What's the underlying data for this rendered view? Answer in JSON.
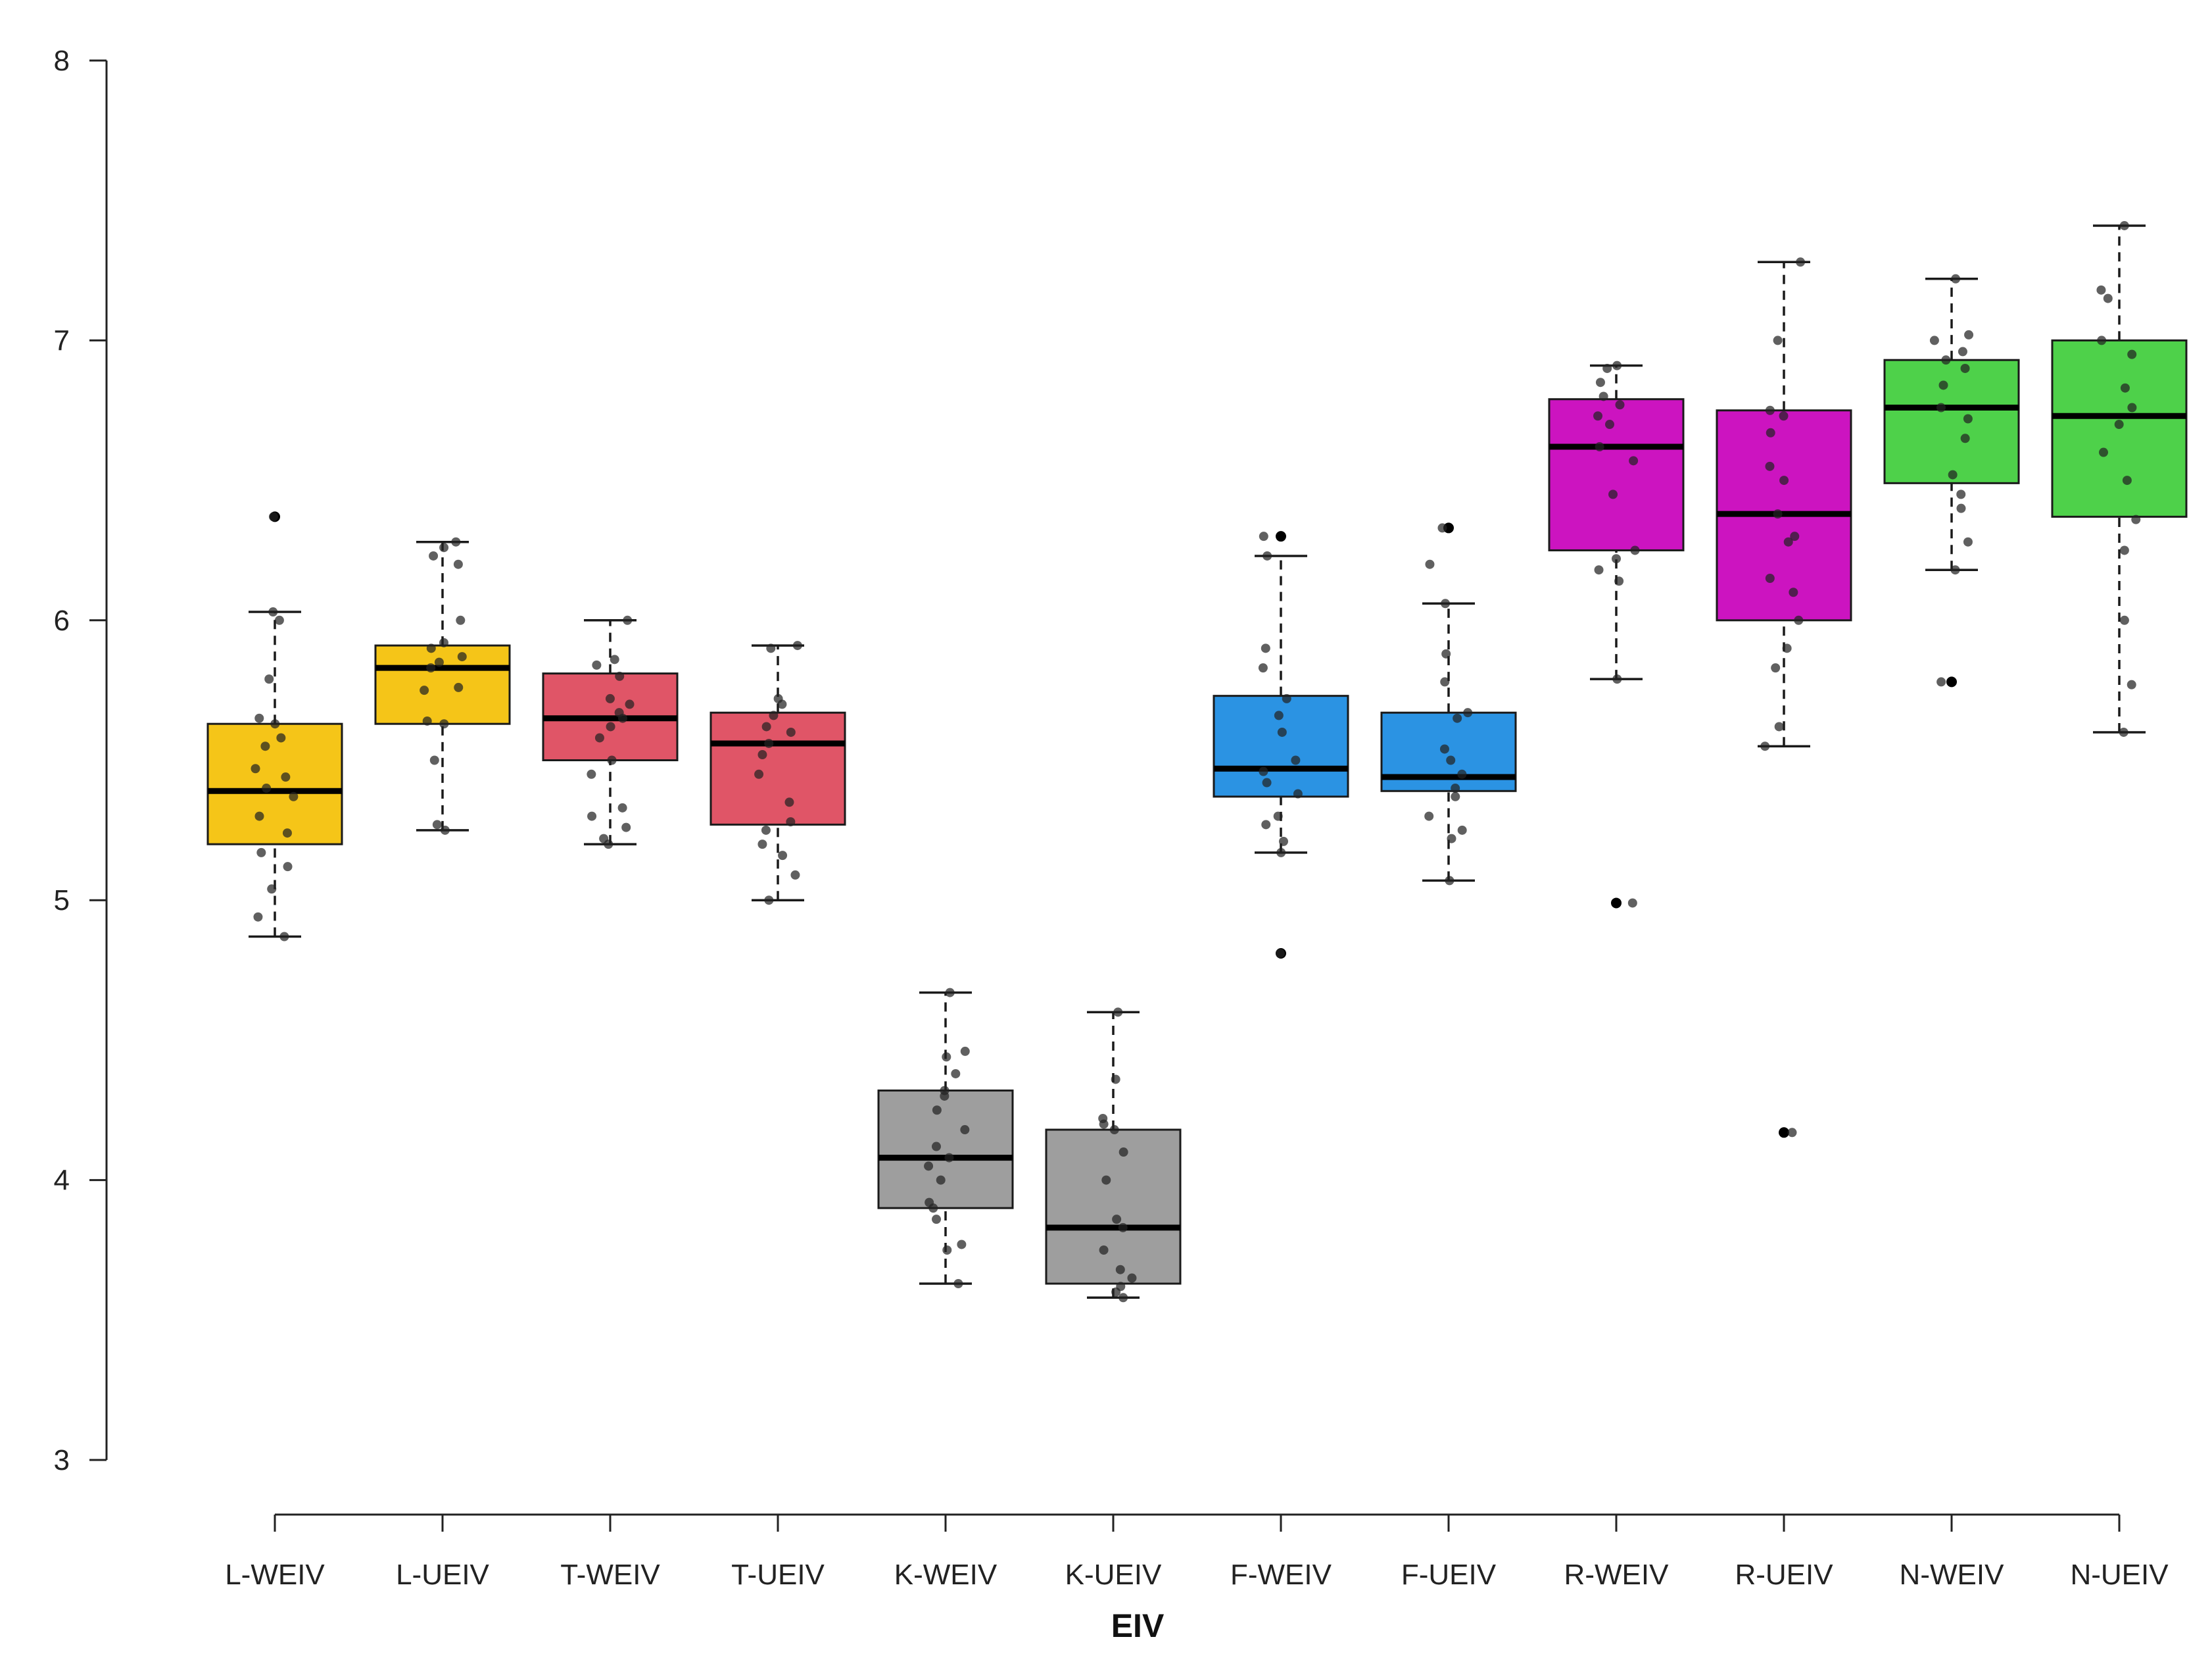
{
  "chart_data": {
    "type": "boxplot",
    "title": "",
    "xlabel": "EIV",
    "ylabel": "",
    "ylim": [
      3,
      8
    ],
    "yticks": [
      3,
      4,
      5,
      6,
      7,
      8
    ],
    "categories": [
      "L-WEIV",
      "L-UEIV",
      "T-WEIV",
      "T-UEIV",
      "K-WEIV",
      "K-UEIV",
      "F-WEIV",
      "F-UEIV",
      "R-WEIV",
      "R-UEIV",
      "N-WEIV",
      "N-UEIV"
    ],
    "series": [
      {
        "name": "L-WEIV",
        "color": "#f5c518",
        "min": 4.87,
        "q1": 5.2,
        "median": 5.39,
        "q3": 5.63,
        "max": 6.03,
        "outliers": [
          6.37
        ],
        "points": [
          4.87,
          4.94,
          5.04,
          5.12,
          5.17,
          5.24,
          5.3,
          5.37,
          5.4,
          5.44,
          5.47,
          5.55,
          5.58,
          5.63,
          5.65,
          5.79,
          6.0,
          6.03,
          6.37
        ]
      },
      {
        "name": "L-UEIV",
        "color": "#f5c518",
        "min": 5.25,
        "q1": 5.63,
        "median": 5.83,
        "q3": 5.91,
        "max": 6.28,
        "outliers": [],
        "points": [
          5.25,
          5.27,
          5.5,
          5.63,
          5.64,
          5.75,
          5.76,
          5.83,
          5.85,
          5.87,
          5.9,
          5.92,
          6.0,
          6.2,
          6.23,
          6.26,
          6.28
        ]
      },
      {
        "name": "T-WEIV",
        "color": "#e05567",
        "min": 5.2,
        "q1": 5.5,
        "median": 5.65,
        "q3": 5.81,
        "max": 6.0,
        "outliers": [],
        "points": [
          5.2,
          5.22,
          5.26,
          5.3,
          5.33,
          5.45,
          5.5,
          5.58,
          5.62,
          5.65,
          5.67,
          5.7,
          5.72,
          5.8,
          5.84,
          5.86,
          6.0
        ]
      },
      {
        "name": "T-UEIV",
        "color": "#e05567",
        "min": 5.0,
        "q1": 5.27,
        "median": 5.56,
        "q3": 5.67,
        "max": 5.91,
        "outliers": [],
        "points": [
          5.0,
          5.09,
          5.16,
          5.2,
          5.25,
          5.28,
          5.35,
          5.45,
          5.52,
          5.56,
          5.6,
          5.62,
          5.66,
          5.7,
          5.72,
          5.9,
          5.91
        ]
      },
      {
        "name": "K-WEIV",
        "color": "#9e9e9e",
        "min": 3.63,
        "q1": 3.9,
        "median": 4.08,
        "q3": 4.32,
        "max": 4.67,
        "outliers": [],
        "points": [
          3.63,
          3.75,
          3.77,
          3.86,
          3.9,
          3.92,
          4.0,
          4.05,
          4.08,
          4.12,
          4.18,
          4.25,
          4.3,
          4.32,
          4.38,
          4.44,
          4.46,
          4.67
        ]
      },
      {
        "name": "K-UEIV",
        "color": "#9e9e9e",
        "min": 3.58,
        "q1": 3.63,
        "median": 3.83,
        "q3": 4.18,
        "max": 4.6,
        "outliers": [],
        "points": [
          3.58,
          3.6,
          3.62,
          3.65,
          3.68,
          3.75,
          3.83,
          3.86,
          4.0,
          4.1,
          4.18,
          4.2,
          4.22,
          4.36,
          4.6
        ]
      },
      {
        "name": "F-WEIV",
        "color": "#2b93e3",
        "min": 5.17,
        "q1": 5.37,
        "median": 5.47,
        "q3": 5.73,
        "max": 6.23,
        "outliers": [
          6.3,
          4.81
        ],
        "points": [
          5.17,
          5.21,
          5.27,
          5.3,
          5.38,
          5.42,
          5.46,
          5.5,
          5.6,
          5.66,
          5.72,
          5.83,
          5.9,
          6.23,
          6.3,
          4.81
        ]
      },
      {
        "name": "F-UEIV",
        "color": "#2b93e3",
        "min": 5.07,
        "q1": 5.39,
        "median": 5.44,
        "q3": 5.67,
        "max": 6.06,
        "outliers": [
          6.33
        ],
        "points": [
          5.07,
          5.22,
          5.25,
          5.3,
          5.37,
          5.4,
          5.45,
          5.5,
          5.54,
          5.65,
          5.67,
          5.78,
          5.88,
          6.06,
          6.2,
          6.33
        ]
      },
      {
        "name": "R-WEIV",
        "color": "#cc14c0",
        "min": 5.79,
        "q1": 6.25,
        "median": 6.62,
        "q3": 6.79,
        "max": 6.91,
        "outliers": [
          4.99
        ],
        "points": [
          5.79,
          6.14,
          6.18,
          6.22,
          6.25,
          6.45,
          6.57,
          6.62,
          6.7,
          6.73,
          6.77,
          6.8,
          6.85,
          6.9,
          6.91,
          4.99
        ]
      },
      {
        "name": "R-UEIV",
        "color": "#cc14c0",
        "min": 5.55,
        "q1": 6.0,
        "median": 6.38,
        "q3": 6.75,
        "max": 7.28,
        "outliers": [
          4.17
        ],
        "points": [
          5.55,
          5.62,
          5.83,
          5.9,
          6.0,
          6.1,
          6.15,
          6.28,
          6.3,
          6.38,
          6.5,
          6.55,
          6.67,
          6.73,
          6.75,
          7.0,
          7.28,
          4.17
        ]
      },
      {
        "name": "N-WEIV",
        "color": "#4ed14a",
        "min": 6.18,
        "q1": 6.49,
        "median": 6.76,
        "q3": 6.93,
        "max": 7.22,
        "outliers": [
          5.78
        ],
        "points": [
          6.18,
          6.28,
          6.4,
          6.45,
          6.52,
          6.65,
          6.72,
          6.76,
          6.84,
          6.9,
          6.93,
          6.96,
          7.0,
          7.02,
          7.22,
          5.78
        ]
      },
      {
        "name": "N-UEIV",
        "color": "#4ed14a",
        "min": 5.6,
        "q1": 6.37,
        "median": 6.73,
        "q3": 7.0,
        "max": 7.41,
        "outliers": [],
        "points": [
          5.6,
          5.77,
          6.0,
          6.25,
          6.36,
          6.5,
          6.6,
          6.7,
          6.76,
          6.83,
          6.95,
          7.0,
          7.15,
          7.18,
          7.41
        ]
      }
    ]
  }
}
